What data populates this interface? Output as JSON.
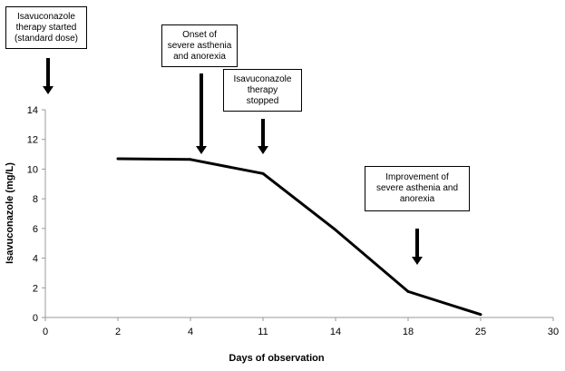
{
  "chart_data": {
    "type": "line",
    "xlabel": "Days  of observation",
    "ylabel": "Isavuconazole   (mg/L)",
    "ylim": [
      0,
      14
    ],
    "yticks": [
      "0",
      "2",
      "4",
      "6",
      "8",
      "10",
      "12",
      "14"
    ],
    "xticks": [
      "0",
      "2",
      "4",
      "11",
      "14",
      "18",
      "25",
      "30"
    ],
    "grid": false,
    "legend": "none",
    "line_color": "#000000",
    "series": [
      {
        "x": [
          "2",
          "4",
          "11",
          "14",
          "18",
          "25"
        ],
        "values": [
          10.7,
          10.65,
          9.7,
          5.9,
          1.75,
          0.2
        ]
      }
    ],
    "annotations": [
      {
        "lines": [
          "Isavuconazole",
          "therapy started",
          "(standard dose)"
        ],
        "at_tick": "0"
      },
      {
        "lines": [
          "Onset of",
          "severe asthenia",
          "and anorexia"
        ],
        "at_tick": "4"
      },
      {
        "lines": [
          "Isavuconazole",
          "therapy",
          "stopped"
        ],
        "at_tick": "11"
      },
      {
        "lines": [
          "Improvement of",
          "severe asthenia and",
          "anorexia"
        ],
        "at_tick": "18"
      }
    ]
  }
}
